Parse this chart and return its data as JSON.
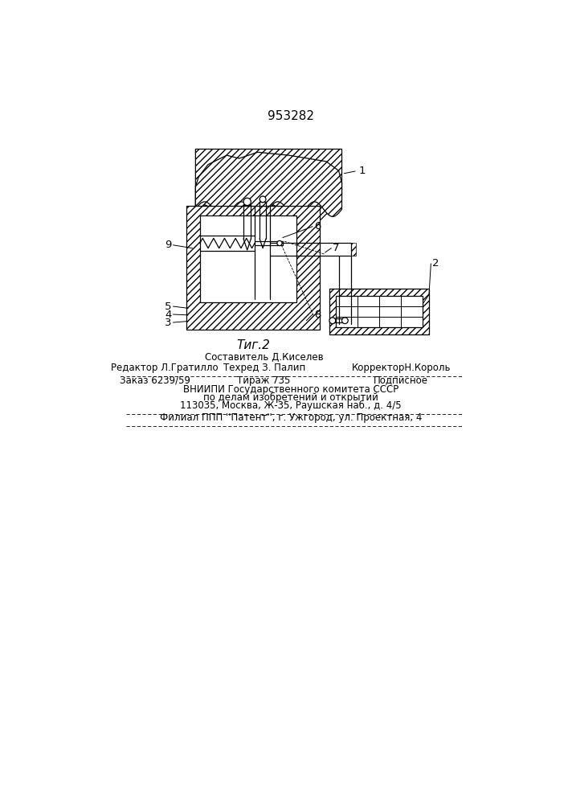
{
  "patent_number": "953282",
  "fig_label": "Τиг.2",
  "background_color": "#ffffff",
  "line_color": "#000000",
  "footer": {
    "line1_center_top": "Составитель Д.Киселев",
    "line1_left": "Редактор Л.Гратилло",
    "line1_center": "Техред З. Палип",
    "line1_right": "КорректорН.Король",
    "line2_left": "Заказ 6239/59",
    "line2_center": "Тираж 735",
    "line2_right": "Подписное",
    "line3": "ВНИИПИ Государственного комитета СССР",
    "line4": "по делам изобретений и открытий",
    "line5": "113035, Москва, Ж-35, Раушская наб., д. 4/5",
    "line6": "Филиал ППП ''Патент'', г. Ужгород, ул. Проектная, 4"
  }
}
